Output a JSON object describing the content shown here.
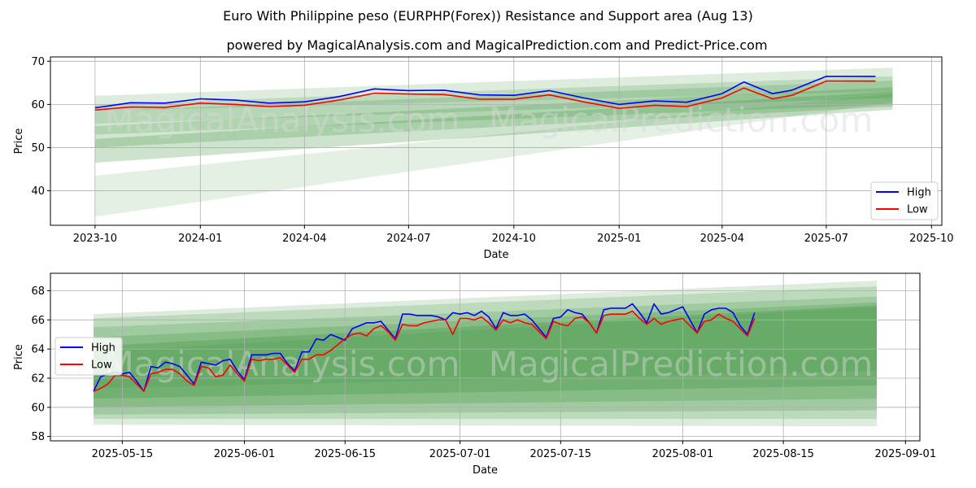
{
  "title": "Euro With Philippine peso (EURPHP(Forex)) Resistance and Support area (Aug 13)",
  "subtitle": "powered by MagicalAnalysis.com and MagicalPrediction.com and Predict-Price.com",
  "watermark": [
    "MagicalAnalysis.com",
    "MagicalPrediction.com"
  ],
  "colors": {
    "high": "#0000ff",
    "low": "#ff0000",
    "band": "#2e8b2e",
    "grid": "#b0b0b0"
  },
  "chart_data": [
    {
      "type": "line",
      "name": "full-range",
      "xlabel": "Date",
      "ylabel": "Price",
      "x_ticks": [
        "2023-10",
        "2024-01",
        "2024-04",
        "2024-07",
        "2024-10",
        "2025-01",
        "2025-04",
        "2025-07",
        "2025-10"
      ],
      "y_ticks": [
        40,
        50,
        60,
        70
      ],
      "ylim": [
        32,
        71
      ],
      "xlim": [
        "2023-08-23",
        "2025-10-10"
      ],
      "x_start": "2023-10-01",
      "x_end": "2025-08-13",
      "band_end": "2025-08-28",
      "legend": {
        "position": "lower right",
        "entries": [
          "High",
          "Low"
        ]
      },
      "grid": true,
      "series": [
        {
          "name": "High",
          "color": "#0000ff",
          "x": [
            "2023-10-01",
            "2023-11-01",
            "2023-12-01",
            "2024-01-01",
            "2024-02-01",
            "2024-03-01",
            "2024-04-01",
            "2024-05-01",
            "2024-06-01",
            "2024-07-01",
            "2024-08-01",
            "2024-09-01",
            "2024-10-01",
            "2024-11-01",
            "2024-12-01",
            "2025-01-01",
            "2025-02-01",
            "2025-03-01",
            "2025-04-01",
            "2025-04-20",
            "2025-05-15",
            "2025-06-01",
            "2025-07-01",
            "2025-08-13"
          ],
          "values": [
            59.2,
            60.4,
            60.3,
            61.3,
            61.0,
            60.3,
            60.6,
            61.8,
            63.6,
            63.2,
            63.3,
            62.2,
            62.1,
            63.2,
            61.5,
            60.0,
            60.8,
            60.5,
            62.5,
            65.2,
            62.5,
            63.3,
            66.5,
            66.5
          ]
        },
        {
          "name": "Low",
          "color": "#ff0000",
          "x": [
            "2023-10-01",
            "2023-11-01",
            "2023-12-01",
            "2024-01-01",
            "2024-02-01",
            "2024-03-01",
            "2024-04-01",
            "2024-05-01",
            "2024-06-01",
            "2024-07-01",
            "2024-08-01",
            "2024-09-01",
            "2024-10-01",
            "2024-11-01",
            "2024-12-01",
            "2025-01-01",
            "2025-02-01",
            "2025-03-01",
            "2025-04-01",
            "2025-04-20",
            "2025-05-15",
            "2025-06-01",
            "2025-07-01",
            "2025-08-13"
          ],
          "values": [
            58.7,
            59.4,
            59.3,
            60.3,
            60.0,
            59.5,
            59.8,
            61.0,
            62.6,
            62.4,
            62.3,
            61.2,
            61.2,
            62.2,
            60.6,
            59.1,
            59.8,
            59.5,
            61.5,
            63.8,
            61.3,
            62.1,
            65.4,
            65.4
          ]
        }
      ],
      "bands": [
        {
          "start": [
            58.5,
            62.0
          ],
          "end": [
            63.0,
            68.5
          ]
        },
        {
          "start": [
            55.5,
            60.0
          ],
          "end": [
            61.5,
            66.5
          ]
        },
        {
          "start": [
            53.0,
            58.5
          ],
          "end": [
            60.0,
            65.5
          ]
        },
        {
          "start": [
            50.0,
            55.0
          ],
          "end": [
            59.5,
            64.0
          ]
        },
        {
          "start": [
            46.5,
            52.0
          ],
          "end": [
            58.8,
            63.0
          ]
        },
        {
          "start": [
            34.0,
            43.5
          ],
          "end": [
            60.5,
            62.5
          ]
        }
      ]
    },
    {
      "type": "line",
      "name": "recent-range",
      "xlabel": "Date",
      "ylabel": "Price",
      "x_ticks": [
        "2025-05-15",
        "2025-06-01",
        "2025-06-15",
        "2025-07-01",
        "2025-07-15",
        "2025-08-01",
        "2025-08-15",
        "2025-09-01"
      ],
      "y_ticks": [
        58,
        60,
        62,
        64,
        66,
        68
      ],
      "ylim": [
        57.7,
        69.2
      ],
      "xlim": [
        "2025-05-05",
        "2025-09-03"
      ],
      "x_start": "2025-05-11",
      "x_end": "2025-08-11",
      "band_end": "2025-08-28",
      "legend": {
        "position": "center left",
        "entries": [
          "High",
          "Low"
        ]
      },
      "grid": true,
      "series": [
        {
          "name": "High",
          "color": "#0000ff",
          "values": [
            61.1,
            62.1,
            62.3,
            62.4,
            62.3,
            62.4,
            61.8,
            61.1,
            62.8,
            62.7,
            63.1,
            63.0,
            62.8,
            62.2,
            61.6,
            63.1,
            63.0,
            62.9,
            63.2,
            63.3,
            62.5,
            61.9,
            63.6,
            63.6,
            63.6,
            63.7,
            63.7,
            63.0,
            62.5,
            63.8,
            63.8,
            64.7,
            64.6,
            65.0,
            64.8,
            64.6,
            65.4,
            65.6,
            65.8,
            65.8,
            65.9,
            65.3,
            64.7,
            66.4,
            66.4,
            66.3,
            66.3,
            66.3,
            66.2,
            66.0,
            66.5,
            66.4,
            66.5,
            66.3,
            66.6,
            66.2,
            65.4,
            66.5,
            66.3,
            66.3,
            66.4,
            66.0,
            65.4,
            64.8,
            66.1,
            66.2,
            66.7,
            66.5,
            66.4,
            65.8,
            65.1,
            66.7,
            66.8,
            66.8,
            66.8,
            67.1,
            66.5,
            65.8,
            67.1,
            66.4,
            66.5,
            66.7,
            66.9,
            66.0,
            65.1,
            66.4,
            66.7,
            66.8,
            66.8,
            66.5,
            65.6,
            65.0,
            66.5
          ]
        },
        {
          "name": "Low",
          "color": "#ff0000",
          "values": [
            61.1,
            61.3,
            61.6,
            62.2,
            62.2,
            62.1,
            61.6,
            61.1,
            62.3,
            62.4,
            62.6,
            62.6,
            62.3,
            61.8,
            61.5,
            62.8,
            62.7,
            62.1,
            62.2,
            62.9,
            62.3,
            61.8,
            63.3,
            63.2,
            63.3,
            63.3,
            63.4,
            62.9,
            62.4,
            63.3,
            63.3,
            63.6,
            63.6,
            63.9,
            64.3,
            64.7,
            65.0,
            65.1,
            64.9,
            65.4,
            65.6,
            65.2,
            64.6,
            65.7,
            65.6,
            65.6,
            65.8,
            65.9,
            66.0,
            66.0,
            65.0,
            66.1,
            66.1,
            66.0,
            66.2,
            65.8,
            65.3,
            66.0,
            65.8,
            66.0,
            65.8,
            65.7,
            65.2,
            64.7,
            65.9,
            65.7,
            65.6,
            66.1,
            66.2,
            65.8,
            65.1,
            66.3,
            66.4,
            66.4,
            66.4,
            66.6,
            66.1,
            65.7,
            66.1,
            65.7,
            65.9,
            66.0,
            66.1,
            65.6,
            65.1,
            65.9,
            66.0,
            66.4,
            66.1,
            65.9,
            65.4,
            64.9,
            66.1
          ]
        }
      ],
      "bands": [
        {
          "start": [
            58.8,
            66.4
          ],
          "end": [
            58.7,
            68.7
          ]
        },
        {
          "start": [
            59.2,
            66.1
          ],
          "end": [
            59.2,
            68.3
          ]
        },
        {
          "start": [
            59.5,
            65.5
          ],
          "end": [
            59.8,
            67.6
          ]
        },
        {
          "start": [
            60.0,
            64.8
          ],
          "end": [
            60.6,
            67.2
          ]
        },
        {
          "start": [
            60.6,
            64.2
          ],
          "end": [
            61.5,
            67.0
          ]
        },
        {
          "start": [
            61.3,
            63.8
          ],
          "end": [
            62.5,
            66.9
          ]
        }
      ]
    }
  ]
}
